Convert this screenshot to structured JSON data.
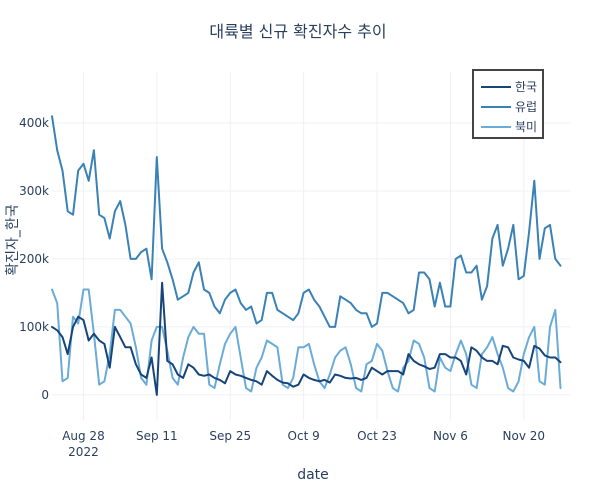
{
  "chart_data": {
    "type": "line",
    "title": "대륙별 신규 확진자수 추이",
    "xlabel": "date",
    "ylabel": "확진자_한국",
    "xlim": [
      "2022-08-22",
      "2022-11-29"
    ],
    "ylim": [
      -37000,
      475000
    ],
    "x_ticks": [
      {
        "date": "2022-08-28",
        "label": "Aug 28",
        "sublabel": "2022"
      },
      {
        "date": "2022-09-11",
        "label": "Sep 11",
        "sublabel": ""
      },
      {
        "date": "2022-09-25",
        "label": "Sep 25",
        "sublabel": ""
      },
      {
        "date": "2022-10-09",
        "label": "Oct 9",
        "sublabel": ""
      },
      {
        "date": "2022-10-23",
        "label": "Oct 23",
        "sublabel": ""
      },
      {
        "date": "2022-11-06",
        "label": "Nov 6",
        "sublabel": ""
      },
      {
        "date": "2022-11-20",
        "label": "Nov 20",
        "sublabel": ""
      }
    ],
    "y_ticks": [
      {
        "value": 0,
        "label": "0"
      },
      {
        "value": 100000,
        "label": "100k"
      },
      {
        "value": 200000,
        "label": "200k"
      },
      {
        "value": 300000,
        "label": "300k"
      },
      {
        "value": 400000,
        "label": "400k"
      }
    ],
    "grid": true,
    "legend_position": "top-right",
    "start_date": "2022-08-22",
    "series": [
      {
        "name": "한국",
        "color": "#17457a",
        "values": [
          100000,
          95000,
          85000,
          60000,
          100000,
          115000,
          110000,
          80000,
          90000,
          80000,
          75000,
          40000,
          100000,
          85000,
          70000,
          70000,
          45000,
          30000,
          25000,
          55000,
          0,
          165000,
          50000,
          45000,
          30000,
          25000,
          45000,
          40000,
          30000,
          28000,
          30000,
          25000,
          22000,
          17000,
          35000,
          30000,
          28000,
          25000,
          22000,
          20000,
          15000,
          35000,
          28000,
          22000,
          18000,
          17000,
          12000,
          15000,
          30000,
          25000,
          22000,
          20000,
          22000,
          18000,
          30000,
          28000,
          25000,
          24000,
          25000,
          22000,
          25000,
          40000,
          35000,
          30000,
          35000,
          35000,
          35000,
          30000,
          60000,
          50000,
          45000,
          42000,
          38000,
          40000,
          60000,
          60000,
          55000,
          55000,
          50000,
          30000,
          70000,
          65000,
          55000,
          50000,
          50000,
          45000,
          72000,
          70000,
          55000,
          52000,
          50000,
          40000,
          72000,
          68000,
          58000,
          55000,
          55000,
          48000
        ]
      },
      {
        "name": "유럽",
        "color": "#3a82b6",
        "values": [
          410000,
          360000,
          330000,
          270000,
          265000,
          330000,
          340000,
          315000,
          360000,
          265000,
          260000,
          230000,
          270000,
          285000,
          250000,
          200000,
          200000,
          210000,
          215000,
          170000,
          350000,
          215000,
          195000,
          170000,
          140000,
          145000,
          150000,
          180000,
          195000,
          155000,
          150000,
          130000,
          120000,
          140000,
          150000,
          155000,
          135000,
          125000,
          130000,
          105000,
          110000,
          150000,
          150000,
          125000,
          120000,
          115000,
          110000,
          120000,
          150000,
          155000,
          140000,
          130000,
          115000,
          100000,
          100000,
          145000,
          140000,
          135000,
          125000,
          120000,
          120000,
          100000,
          105000,
          150000,
          150000,
          145000,
          140000,
          135000,
          120000,
          125000,
          180000,
          180000,
          170000,
          130000,
          165000,
          130000,
          130000,
          200000,
          205000,
          180000,
          180000,
          190000,
          140000,
          160000,
          230000,
          250000,
          190000,
          215000,
          250000,
          170000,
          175000,
          240000,
          315000,
          200000,
          245000,
          250000,
          200000,
          190000
        ]
      },
      {
        "name": "북미",
        "color": "#6aabd8",
        "values": [
          155000,
          135000,
          20000,
          25000,
          115000,
          105000,
          155000,
          155000,
          90000,
          15000,
          20000,
          60000,
          125000,
          125000,
          115000,
          105000,
          70000,
          25000,
          15000,
          80000,
          100000,
          100000,
          65000,
          25000,
          15000,
          55000,
          85000,
          100000,
          90000,
          90000,
          15000,
          10000,
          45000,
          75000,
          90000,
          100000,
          55000,
          10000,
          5000,
          40000,
          55000,
          80000,
          75000,
          70000,
          15000,
          10000,
          25000,
          70000,
          70000,
          75000,
          45000,
          20000,
          10000,
          30000,
          55000,
          65000,
          70000,
          45000,
          10000,
          5000,
          45000,
          50000,
          75000,
          65000,
          35000,
          10000,
          5000,
          40000,
          50000,
          80000,
          75000,
          55000,
          10000,
          5000,
          55000,
          40000,
          35000,
          60000,
          80000,
          60000,
          15000,
          10000,
          60000,
          70000,
          85000,
          60000,
          40000,
          10000,
          5000,
          20000,
          60000,
          85000,
          100000,
          20000,
          15000,
          100000,
          125000,
          10000
        ]
      }
    ]
  }
}
